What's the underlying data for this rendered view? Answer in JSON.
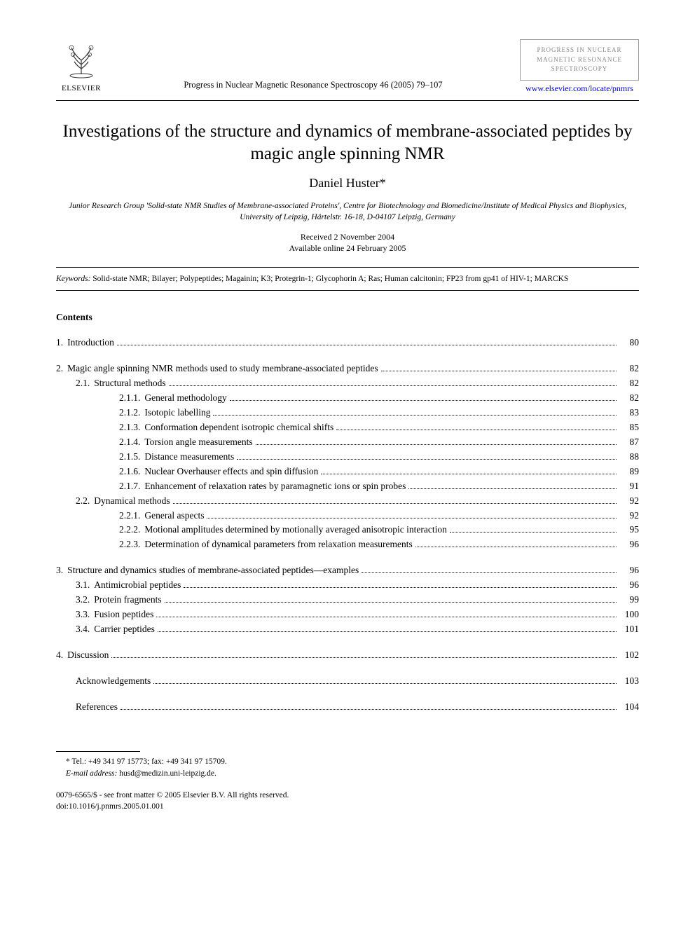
{
  "publisher": {
    "name": "ELSEVIER"
  },
  "citation": "Progress in Nuclear Magnetic Resonance Spectroscopy 46 (2005) 79–107",
  "journal_box": {
    "line1": "PROGRESS IN NUCLEAR",
    "line2": "MAGNETIC RESONANCE",
    "line3": "SPECTROSCOPY",
    "link_text": "www.elsevier.com/locate/pnmrs"
  },
  "title": "Investigations of the structure and dynamics of membrane-associated peptides by magic angle spinning NMR",
  "author": "Daniel Huster*",
  "affiliation": "Junior Research Group 'Solid-state NMR Studies of Membrane-associated Proteins', Centre for Biotechnology and Biomedicine/Institute of Medical Physics and Biophysics, University of Leipzig, Härtelstr. 16-18, D-04107 Leipzig, Germany",
  "dates": {
    "received": "Received 2 November 2004",
    "online": "Available online 24 February 2005"
  },
  "keywords_label": "Keywords:",
  "keywords": " Solid-state NMR; Bilayer; Polypeptides; Magainin; K3; Protegrin-1; Glycophorin A; Ras; Human calcitonin; FP23 from gp41 of HIV-1; MARCKS",
  "contents_heading": "Contents",
  "toc": [
    {
      "block": [
        {
          "num": "1.",
          "text": "Introduction",
          "page": "80",
          "lvl": 1
        }
      ]
    },
    {
      "block": [
        {
          "num": "2.",
          "text": "Magic angle spinning NMR methods used to study membrane-associated peptides",
          "page": "82",
          "lvl": 1
        },
        {
          "num": "2.1.",
          "text": "Structural methods",
          "page": "82",
          "lvl": 2
        },
        {
          "num": "2.1.1.",
          "text": "General methodology",
          "page": "82",
          "lvl": 3
        },
        {
          "num": "2.1.2.",
          "text": "Isotopic labelling",
          "page": "83",
          "lvl": 3
        },
        {
          "num": "2.1.3.",
          "text": "Conformation dependent isotropic chemical shifts",
          "page": "85",
          "lvl": 3
        },
        {
          "num": "2.1.4.",
          "text": "Torsion angle measurements",
          "page": "87",
          "lvl": 3
        },
        {
          "num": "2.1.5.",
          "text": "Distance measurements",
          "page": "88",
          "lvl": 3
        },
        {
          "num": "2.1.6.",
          "text": "Nuclear Overhauser effects and spin diffusion",
          "page": "89",
          "lvl": 3
        },
        {
          "num": "2.1.7.",
          "text": "Enhancement of relaxation rates by paramagnetic ions or spin probes",
          "page": "91",
          "lvl": 3
        },
        {
          "num": "2.2.",
          "text": "Dynamical methods",
          "page": "92",
          "lvl": 2
        },
        {
          "num": "2.2.1.",
          "text": "General aspects",
          "page": "92",
          "lvl": 3
        },
        {
          "num": "2.2.2.",
          "text": "Motional amplitudes determined by motionally averaged anisotropic interaction",
          "page": "95",
          "lvl": 3
        },
        {
          "num": "2.2.3.",
          "text": "Determination of dynamical parameters from relaxation measurements",
          "page": "96",
          "lvl": 3
        }
      ]
    },
    {
      "block": [
        {
          "num": "3.",
          "text": "Structure and dynamics studies of membrane-associated peptides—examples",
          "page": "96",
          "lvl": 1
        },
        {
          "num": "3.1.",
          "text": "Antimicrobial peptides",
          "page": "96",
          "lvl": 2
        },
        {
          "num": "3.2.",
          "text": "Protein fragments",
          "page": "99",
          "lvl": 2
        },
        {
          "num": "3.3.",
          "text": "Fusion peptides",
          "page": "100",
          "lvl": 2
        },
        {
          "num": "3.4.",
          "text": "Carrier peptides",
          "page": "101",
          "lvl": 2
        }
      ]
    },
    {
      "block": [
        {
          "num": "4.",
          "text": "Discussion",
          "page": "102",
          "lvl": 1
        }
      ]
    },
    {
      "block": [
        {
          "num": "",
          "text": "Acknowledgements",
          "page": "103",
          "lvl": "ack"
        }
      ]
    },
    {
      "block": [
        {
          "num": "",
          "text": "References",
          "page": "104",
          "lvl": "ack"
        }
      ]
    }
  ],
  "footnote": {
    "contact": "* Tel.: +49 341 97 15773; fax: +49 341 97 15709.",
    "email_label": "E-mail address:",
    "email": " husd@medizin.uni-leipzig.de."
  },
  "copyright": {
    "line1": "0079-6565/$ - see front matter © 2005 Elsevier B.V. All rights reserved.",
    "line2": "doi:10.1016/j.pnmrs.2005.01.001"
  },
  "colors": {
    "text": "#000000",
    "link": "#0000cc",
    "faded": "#888888",
    "background": "#ffffff"
  }
}
